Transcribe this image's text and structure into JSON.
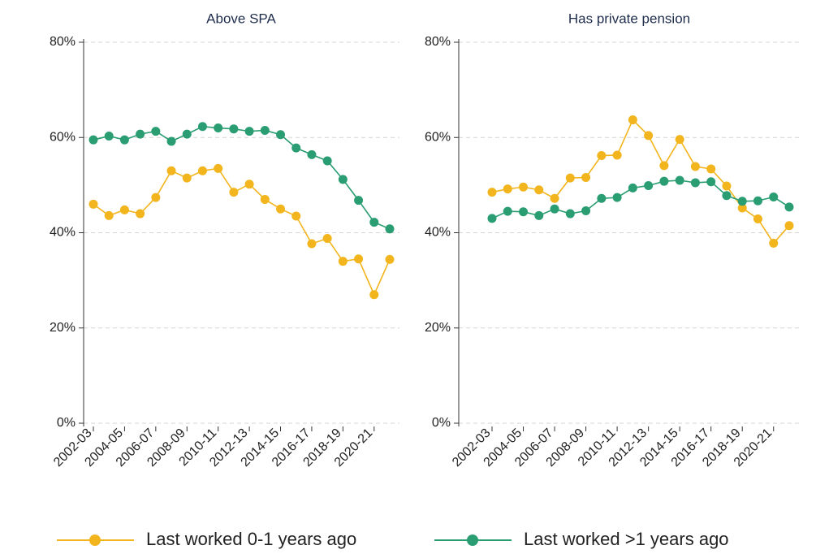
{
  "chart_data": [
    {
      "type": "line",
      "title": "Above SPA",
      "categories": [
        "2002-03",
        null,
        "2004-05",
        null,
        "2006-07",
        null,
        "2008-09",
        null,
        "2010-11",
        null,
        "2012-13",
        null,
        "2014-15",
        null,
        "2016-17",
        null,
        "2018-19",
        null,
        "2020-21",
        null
      ],
      "series": [
        {
          "name": "Last worked 0-1 years ago",
          "color": "#f2b51d",
          "values": [
            46,
            43.6,
            44.8,
            44,
            47.4,
            53,
            51.5,
            53,
            53.5,
            48.5,
            50.2,
            47,
            45,
            43.5,
            37.7,
            38.8,
            34,
            34.5,
            27,
            34.4
          ]
        },
        {
          "name": "Last worked >1 years ago",
          "color": "#2a9d72",
          "values": [
            59.5,
            60.3,
            59.5,
            60.7,
            61.3,
            59.2,
            60.7,
            62.3,
            62,
            61.8,
            61.3,
            61.5,
            60.6,
            57.8,
            56.4,
            55.1,
            51.2,
            46.8,
            42.2,
            40.8
          ]
        }
      ],
      "ylim": [
        0,
        80
      ],
      "yticks": [
        {
          "value": 0,
          "label": "0%"
        },
        {
          "value": 20,
          "label": "20%"
        },
        {
          "value": 40,
          "label": "40%"
        },
        {
          "value": 60,
          "label": "60%"
        },
        {
          "value": 80,
          "label": "80%"
        }
      ],
      "grid": true
    },
    {
      "type": "line",
      "title": "Has private pension",
      "categories": [
        "2002-03",
        null,
        "2004-05",
        null,
        "2006-07",
        null,
        "2008-09",
        null,
        "2010-11",
        null,
        "2012-13",
        null,
        "2014-15",
        null,
        "2016-17",
        null,
        "2018-19",
        null,
        "2020-21",
        null
      ],
      "series": [
        {
          "name": "Last worked 0-1 years ago",
          "color": "#f2b51d",
          "values": [
            48.5,
            49.2,
            49.6,
            49,
            47.2,
            51.5,
            51.6,
            56.2,
            56.3,
            63.7,
            60.4,
            54.1,
            59.6,
            53.9,
            53.4,
            49.8,
            45.2,
            42.9,
            37.8,
            41.5
          ]
        },
        {
          "name": "Last worked >1 years ago",
          "color": "#2a9d72",
          "values": [
            43,
            44.5,
            44.4,
            43.6,
            45,
            44,
            44.6,
            47.2,
            47.4,
            49.4,
            49.9,
            50.8,
            51,
            50.5,
            50.7,
            47.8,
            46.6,
            46.7,
            47.5,
            45.4
          ]
        }
      ],
      "ylim": [
        0,
        80
      ],
      "yticks": [
        {
          "value": 0,
          "label": "0%"
        },
        {
          "value": 20,
          "label": "20%"
        },
        {
          "value": 40,
          "label": "40%"
        },
        {
          "value": 60,
          "label": "60%"
        },
        {
          "value": 80,
          "label": "80%"
        }
      ],
      "grid": true
    }
  ]
}
